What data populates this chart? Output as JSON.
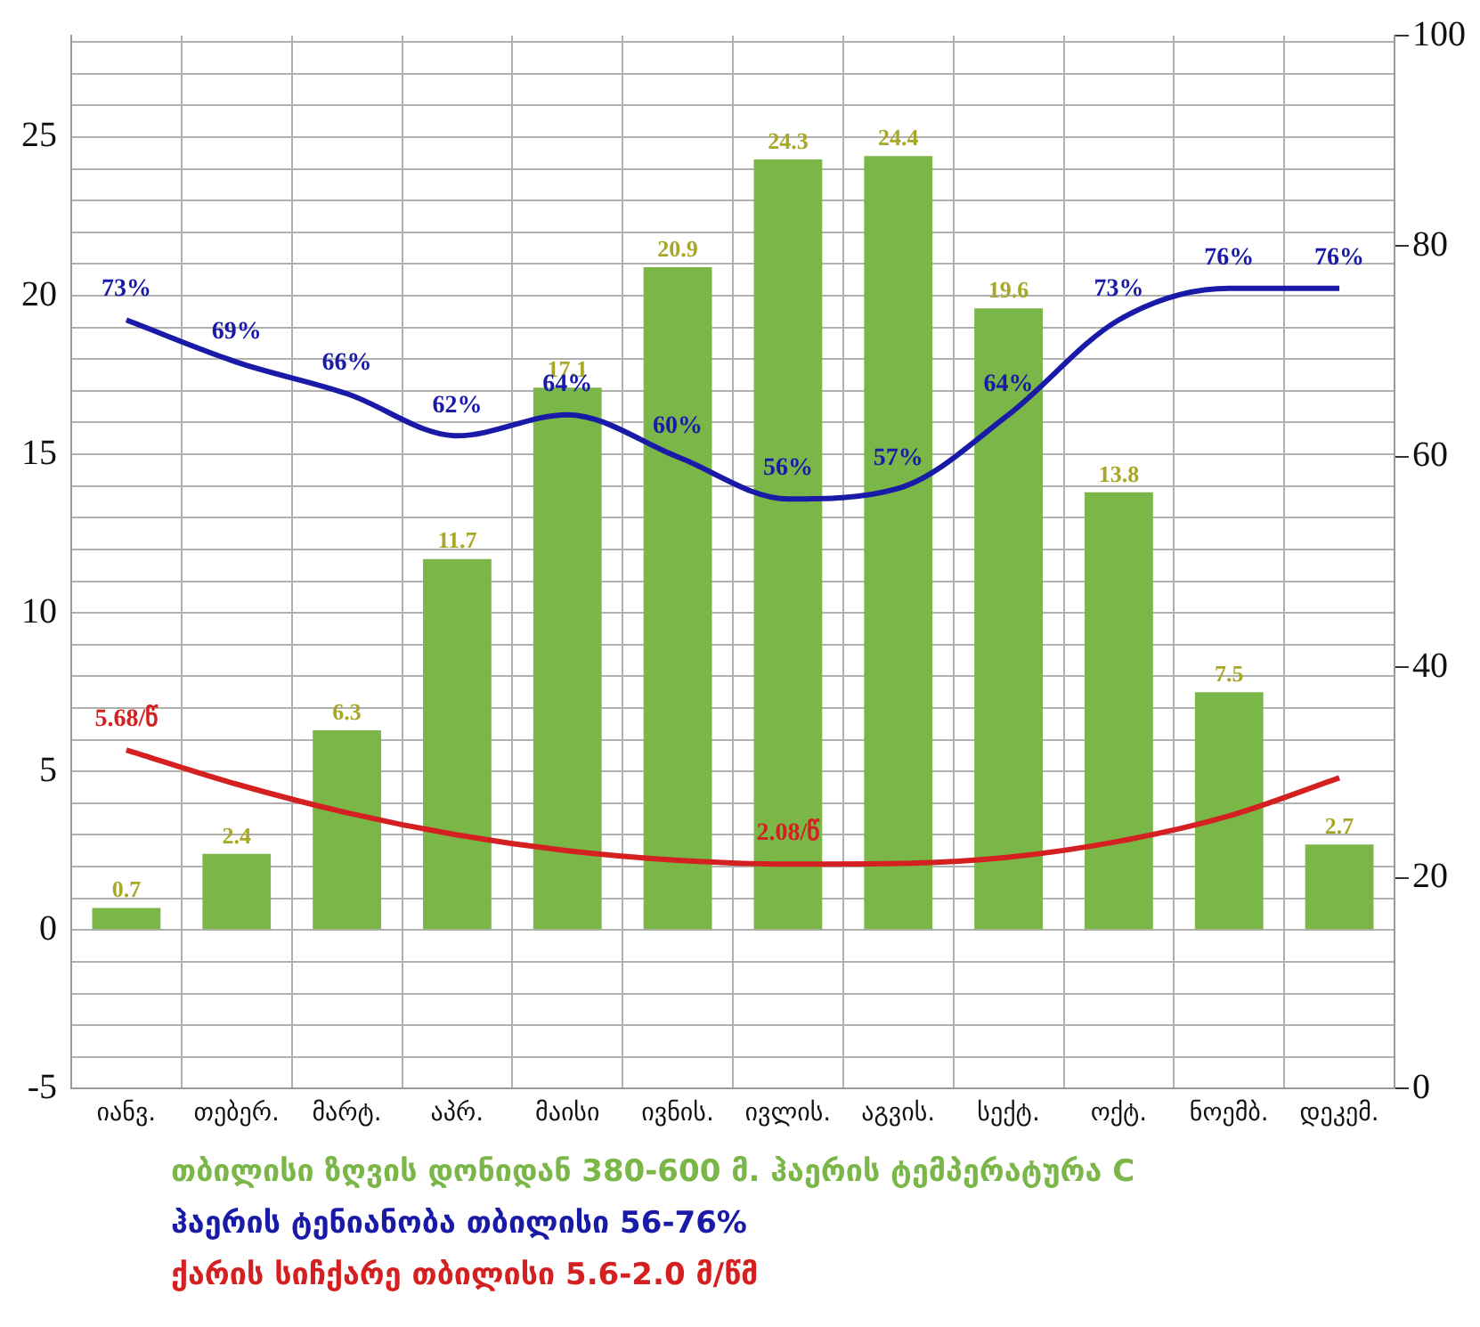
{
  "chart_data": {
    "type": "bar",
    "categories": [
      "იანვ.",
      "თებერ.",
      "მარტ.",
      "აპრ.",
      "მაისი",
      "ივნის.",
      "ივლის.",
      "აგვის.",
      "სექტ.",
      "ოქტ.",
      "ნოემბ.",
      "დეკემ."
    ],
    "series": [
      {
        "name": "თბილისი ზღვის დონიდან 380-600 მ. ჰაერის ტემპერატურა C",
        "color": "#7ab648",
        "values": [
          0.7,
          2.4,
          6.3,
          11.7,
          17.1,
          20.9,
          24.3,
          24.4,
          19.6,
          13.8,
          7.5,
          2.7
        ],
        "value_labels": [
          "0.7",
          "2.4",
          "6.3",
          "11.7",
          "17.1",
          "20.9",
          "24.3",
          "24.4",
          "19.6",
          "13.8",
          "7.5",
          "2.7"
        ]
      },
      {
        "name": "ჰაერის ტენიანობა თბილისი 56-76%",
        "type": "line",
        "axis": "y2",
        "color": "#1a1aa8",
        "values": [
          73,
          69,
          66,
          62,
          64,
          60,
          56,
          57,
          64,
          73,
          76,
          76
        ],
        "value_labels": [
          "73%",
          "69%",
          "66%",
          "62%",
          "64%",
          "60%",
          "56%",
          "57%",
          "64%",
          "73%",
          "76%",
          "76%"
        ]
      },
      {
        "name": "ქარის სიჩქარე თბილისი 5.6-2.0 მ/წმ",
        "type": "line",
        "color": "#d42020",
        "values": [
          5.68,
          4.6,
          3.7,
          3.0,
          2.5,
          2.2,
          2.08,
          2.1,
          2.3,
          2.8,
          3.6,
          4.8
        ],
        "value_labels": [
          "5.68/წ",
          null,
          null,
          null,
          null,
          null,
          "2.08/წ",
          null,
          null,
          null,
          null,
          null
        ]
      }
    ],
    "ylim": [
      -5,
      28.2
    ],
    "yticks": [
      -5,
      {
        "value": -4,
        "label": null
      },
      {
        "value": -3,
        "label": null
      },
      {
        "value": -2,
        "label": null
      },
      {
        "value": -1,
        "label": null
      },
      0,
      {
        "value": 1,
        "label": null
      },
      {
        "value": 2,
        "label": null
      },
      {
        "value": 3,
        "label": null
      },
      {
        "value": 4,
        "label": null
      },
      5,
      {
        "value": 6,
        "label": null
      },
      {
        "value": 7,
        "label": null
      },
      {
        "value": 8,
        "label": null
      },
      {
        "value": 9,
        "label": null
      },
      10,
      {
        "value": 11,
        "label": null
      },
      {
        "value": 12,
        "label": null
      },
      {
        "value": 13,
        "label": null
      },
      {
        "value": 14,
        "label": null
      },
      15,
      {
        "value": 16,
        "label": null
      },
      {
        "value": 17,
        "label": null
      },
      {
        "value": 18,
        "label": null
      },
      {
        "value": 19,
        "label": null
      },
      20,
      {
        "value": 21,
        "label": null
      },
      {
        "value": 22,
        "label": null
      },
      {
        "value": 23,
        "label": null
      },
      {
        "value": 24,
        "label": null
      },
      25,
      {
        "value": 26,
        "label": null
      },
      {
        "value": 27,
        "label": null
      },
      {
        "value": 28,
        "label": null
      }
    ],
    "y2lim": [
      0,
      100
    ],
    "y2ticks": [
      0,
      20,
      40,
      60,
      80,
      100
    ],
    "grid": true,
    "legend": "bottom"
  }
}
